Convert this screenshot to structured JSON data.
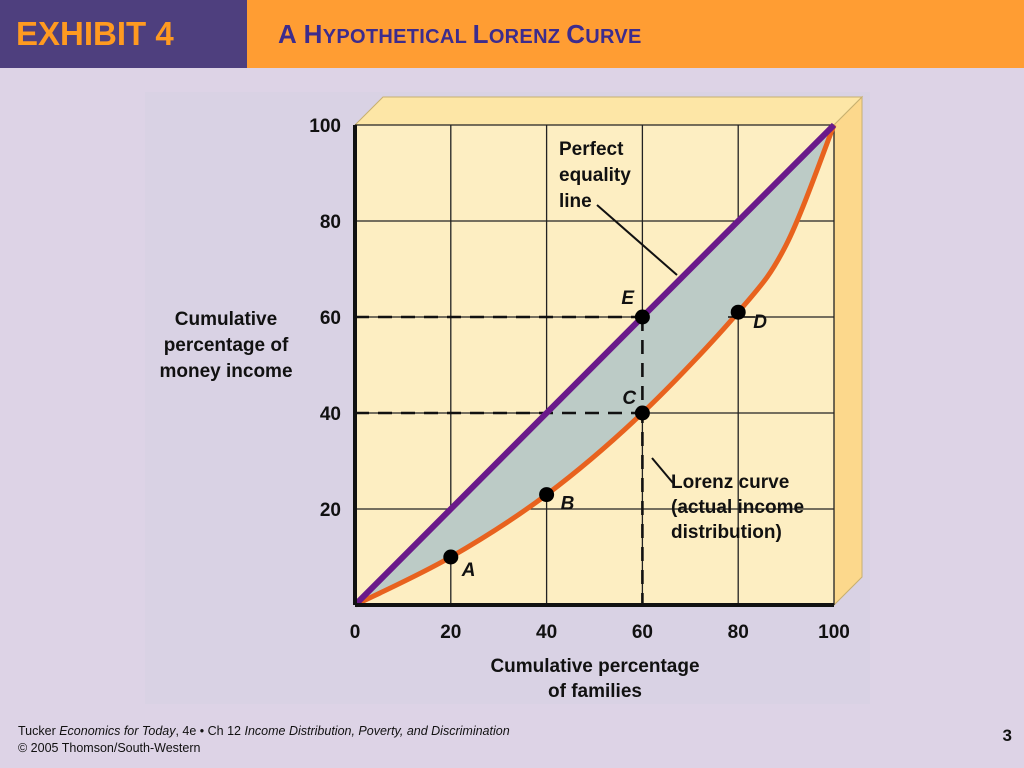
{
  "header": {
    "exhibit": "EXHIBIT 4",
    "title_parts": [
      {
        "text": "A H",
        "small": false
      },
      {
        "text": "YPOTHETICAL ",
        "small": true
      },
      {
        "text": "L",
        "small": false
      },
      {
        "text": "ORENZ ",
        "small": true
      },
      {
        "text": "C",
        "small": false
      },
      {
        "text": "URVE",
        "small": true
      }
    ]
  },
  "footer": {
    "author": "Tucker ",
    "book": "Economics for Today",
    "edition": ", 4e • Ch 12 ",
    "chapter": "Income Distribution, Poverty, and Discrimination",
    "copyright": "© 2005 Thomson/South-Western",
    "page": "3"
  },
  "colors": {
    "header_left_bg": "#4e3f7e",
    "header_left_text": "#ff9a20",
    "header_right_bg": "#ff9d33",
    "header_right_text": "#3d2c8d",
    "plot_bg": "#fdeec2",
    "shade": "#bccbc6",
    "equality_line": "#6a1a8a",
    "lorenz_curve": "#e8621e"
  },
  "chart_data": {
    "type": "line",
    "x_ticks": [
      "0",
      "20",
      "40",
      "60",
      "80",
      "100"
    ],
    "y_ticks": [
      "20",
      "40",
      "60",
      "80",
      "100"
    ],
    "x_label": [
      "Cumulative percentage",
      "of families"
    ],
    "y_label": [
      "Cumulative",
      "percentage of",
      "money income"
    ],
    "xlim": [
      0,
      100
    ],
    "ylim": [
      0,
      100
    ],
    "grid": true,
    "series": [
      {
        "name": "Perfect equality line",
        "values": [
          [
            0,
            0
          ],
          [
            100,
            100
          ]
        ]
      },
      {
        "name": "Lorenz curve (actual income distribution)",
        "values": [
          [
            0,
            0
          ],
          [
            20,
            10
          ],
          [
            40,
            23
          ],
          [
            60,
            40
          ],
          [
            80,
            61
          ],
          [
            90,
            75
          ],
          [
            100,
            100
          ]
        ]
      }
    ],
    "points": [
      {
        "label": "A",
        "x": 20,
        "y": 10
      },
      {
        "label": "B",
        "x": 40,
        "y": 23
      },
      {
        "label": "C",
        "x": 60,
        "y": 40
      },
      {
        "label": "D",
        "x": 80,
        "y": 61
      },
      {
        "label": "E",
        "x": 60,
        "y": 60
      }
    ],
    "annotations": {
      "equality": [
        "Perfect",
        "equality",
        "line"
      ],
      "lorenz": [
        "Lorenz curve",
        "(actual income",
        "distribution)"
      ]
    }
  }
}
